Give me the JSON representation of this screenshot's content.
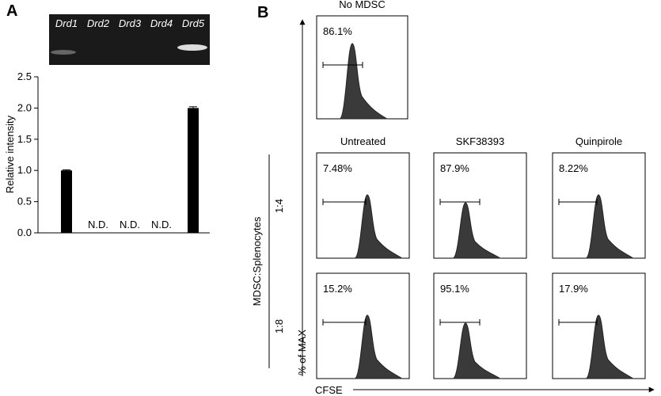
{
  "chart_data": {
    "type": "bar",
    "panel_label": "A",
    "categories": [
      "Drd1",
      "Drd2",
      "Drd3",
      "Drd4",
      "Drd5"
    ],
    "values": [
      1.0,
      null,
      null,
      null,
      2.0
    ],
    "errors": [
      0.01,
      null,
      null,
      null,
      0.02
    ],
    "value_labels": [
      null,
      "N.D.",
      "N.D.",
      "N.D.",
      null
    ],
    "color": "#000000",
    "ylabel": "Relative intensity",
    "ylim": [
      0,
      2.5
    ],
    "yticks": [
      {
        "value": 0,
        "label": "0.0"
      },
      {
        "value": 0.5,
        "label": "0.5"
      },
      {
        "value": 1,
        "label": "1.0"
      },
      {
        "value": 1.5,
        "label": "1.5"
      },
      {
        "value": 2,
        "label": "2.0"
      },
      {
        "value": 2.5,
        "label": "2.5"
      }
    ]
  },
  "panel_b": {
    "panel_label": "B",
    "y_axis_label": "% of MAX",
    "x_axis_label": "CFSE",
    "group_label": "MDSC:Splenocytes",
    "control": {
      "title": "No MDSC",
      "percent": "86.1%"
    },
    "columns": [
      "Untreated",
      "SKF38393",
      "Quinpirole"
    ],
    "rows": [
      {
        "ratio": "1:4",
        "percents": [
          "7.48%",
          "87.9%",
          "8.22%"
        ]
      },
      {
        "ratio": "1:8",
        "percents": [
          "15.2%",
          "95.1%",
          "17.9%"
        ]
      }
    ]
  }
}
